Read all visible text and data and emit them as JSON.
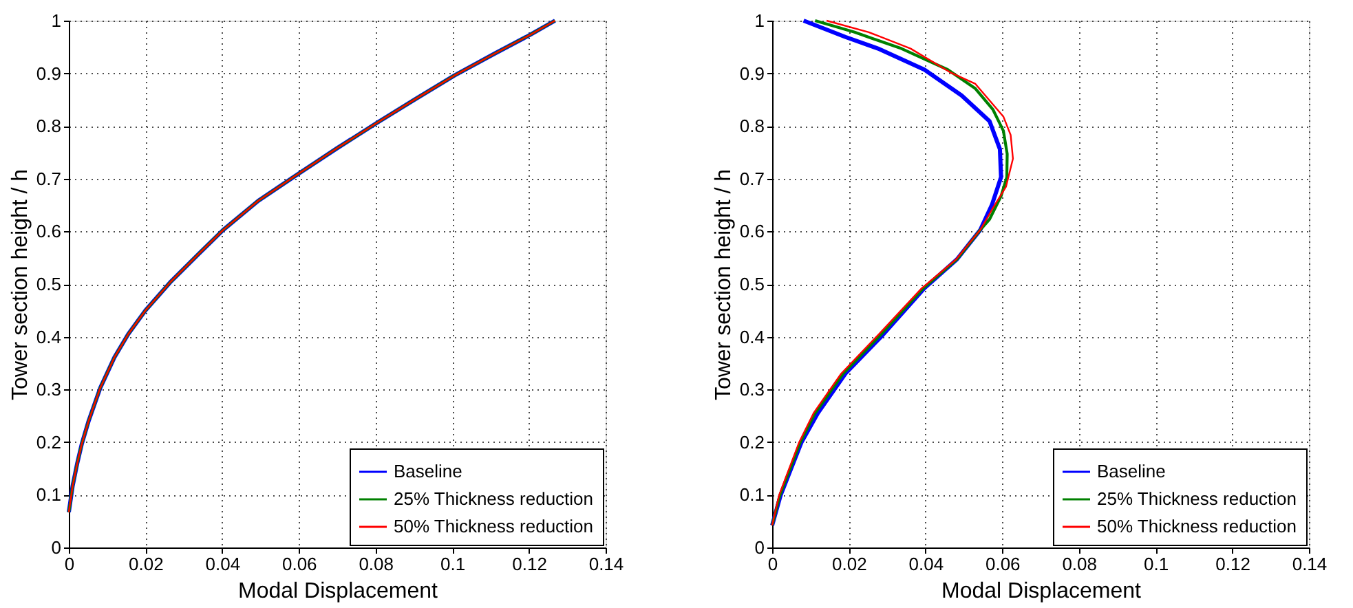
{
  "chart_data": [
    {
      "type": "line",
      "xlabel": "Modal Displacement",
      "ylabel": "Tower section height / h",
      "xlim": [
        0,
        0.14
      ],
      "ylim": [
        0,
        1
      ],
      "xticks": [
        0,
        0.02,
        0.04,
        0.06,
        0.08,
        0.1,
        0.12,
        0.14
      ],
      "yticks": [
        0,
        0.1,
        0.2,
        0.3,
        0.4,
        0.5,
        0.6,
        0.7,
        0.8,
        0.9,
        1
      ],
      "grid": true,
      "legend": "bottom right",
      "line_style": "solid",
      "marker": "none",
      "series": [
        {
          "name": "Baseline",
          "color": "#0000ff",
          "x": [
            0,
            0.001,
            0.0022,
            0.0034,
            0.0052,
            0.0082,
            0.0119,
            0.0155,
            0.02,
            0.0264,
            0.0337,
            0.0403,
            0.0494,
            0.06,
            0.07,
            0.0806,
            0.0906,
            0.1006,
            0.1112,
            0.1203,
            0.1268
          ],
          "values": [
            0.067,
            0.117,
            0.16,
            0.197,
            0.241,
            0.303,
            0.361,
            0.405,
            0.45,
            0.503,
            0.556,
            0.603,
            0.658,
            0.71,
            0.758,
            0.807,
            0.852,
            0.896,
            0.938,
            0.973,
            1.0
          ]
        },
        {
          "name": "25% Thickness reduction",
          "color": "#008000",
          "x": [
            0,
            0.001,
            0.0022,
            0.0034,
            0.0052,
            0.0082,
            0.0119,
            0.0155,
            0.02,
            0.0264,
            0.0337,
            0.0403,
            0.0494,
            0.06,
            0.07,
            0.0806,
            0.0906,
            0.1006,
            0.1112,
            0.1203,
            0.1268
          ],
          "values": [
            0.067,
            0.117,
            0.16,
            0.197,
            0.241,
            0.303,
            0.361,
            0.405,
            0.45,
            0.503,
            0.556,
            0.603,
            0.658,
            0.71,
            0.758,
            0.807,
            0.852,
            0.896,
            0.938,
            0.973,
            1.0
          ]
        },
        {
          "name": "50% Thickness reduction",
          "color": "#ff0000",
          "x": [
            0,
            0.001,
            0.0022,
            0.0034,
            0.0052,
            0.0082,
            0.0119,
            0.0155,
            0.02,
            0.0264,
            0.0337,
            0.0403,
            0.0494,
            0.06,
            0.07,
            0.0806,
            0.0906,
            0.1006,
            0.1112,
            0.1203,
            0.1268
          ],
          "values": [
            0.067,
            0.117,
            0.16,
            0.197,
            0.241,
            0.303,
            0.361,
            0.405,
            0.45,
            0.503,
            0.556,
            0.603,
            0.658,
            0.71,
            0.758,
            0.807,
            0.852,
            0.896,
            0.938,
            0.973,
            1.0
          ]
        }
      ]
    },
    {
      "type": "line",
      "xlabel": "Modal Displacement",
      "ylabel": "Tower section height / h",
      "xlim": [
        0,
        0.14
      ],
      "ylim": [
        0,
        1
      ],
      "xticks": [
        0,
        0.02,
        0.04,
        0.06,
        0.08,
        0.1,
        0.12,
        0.14
      ],
      "yticks": [
        0,
        0.1,
        0.2,
        0.3,
        0.4,
        0.5,
        0.6,
        0.7,
        0.8,
        0.9,
        1
      ],
      "grid": true,
      "legend": "bottom right",
      "line_style": "solid",
      "marker": "none",
      "series": [
        {
          "name": "Baseline",
          "color": "#0000ff",
          "x": [
            0,
            0.0022,
            0.0076,
            0.0119,
            0.0191,
            0.0288,
            0.0397,
            0.0482,
            0.0543,
            0.0573,
            0.0597,
            0.0594,
            0.0567,
            0.0494,
            0.0397,
            0.0276,
            0.0191,
            0.0082
          ],
          "values": [
            0.042,
            0.099,
            0.199,
            0.255,
            0.33,
            0.403,
            0.492,
            0.547,
            0.603,
            0.65,
            0.703,
            0.756,
            0.809,
            0.858,
            0.907,
            0.947,
            0.969,
            1.0
          ]
        },
        {
          "name": "25% Thickness reduction",
          "color": "#008000",
          "x": [
            0,
            0.002,
            0.0073,
            0.0112,
            0.0185,
            0.0282,
            0.0394,
            0.0482,
            0.0543,
            0.0567,
            0.0597,
            0.0612,
            0.0613,
            0.0603,
            0.0576,
            0.053,
            0.0458,
            0.0337,
            0.0215,
            0.0112
          ],
          "values": [
            0.042,
            0.099,
            0.199,
            0.255,
            0.33,
            0.403,
            0.492,
            0.547,
            0.603,
            0.623,
            0.667,
            0.703,
            0.747,
            0.791,
            0.831,
            0.871,
            0.907,
            0.947,
            0.978,
            1.0
          ]
        },
        {
          "name": "50% Thickness reduction",
          "color": "#ff0000",
          "x": [
            0,
            0.0018,
            0.007,
            0.0108,
            0.018,
            0.0276,
            0.039,
            0.048,
            0.0543,
            0.0573,
            0.061,
            0.0628,
            0.0622,
            0.0603,
            0.053,
            0.0464,
            0.0361,
            0.0252,
            0.0142
          ],
          "values": [
            0.042,
            0.099,
            0.199,
            0.255,
            0.33,
            0.403,
            0.492,
            0.547,
            0.603,
            0.641,
            0.685,
            0.738,
            0.783,
            0.818,
            0.88,
            0.902,
            0.947,
            0.978,
            1.0
          ]
        }
      ]
    }
  ]
}
